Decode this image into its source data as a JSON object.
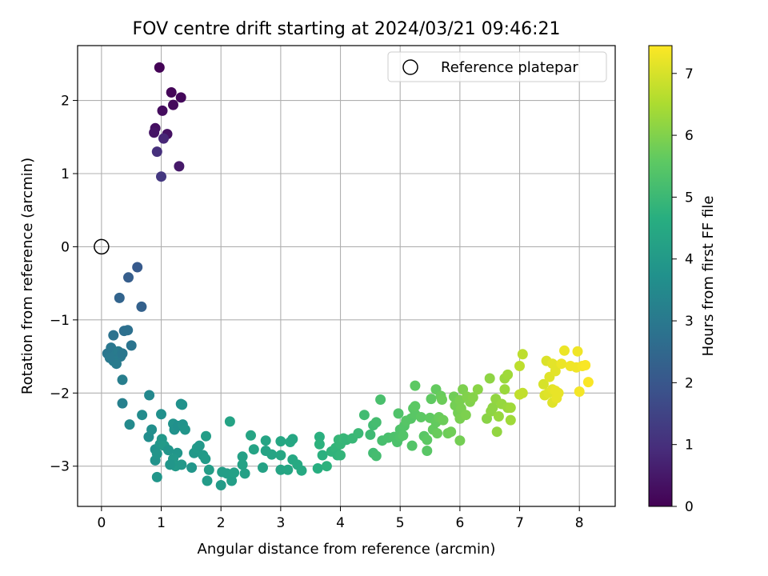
{
  "chart_data": {
    "type": "scatter",
    "title": "FOV centre drift starting at 2024/03/21 09:46:21",
    "xlabel": "Angular distance from reference (arcmin)",
    "ylabel": "Rotation from reference (arcmin)",
    "xlim": [
      -0.4,
      8.6
    ],
    "ylim": [
      -3.55,
      2.75
    ],
    "xticks": [
      0,
      1,
      2,
      3,
      4,
      5,
      6,
      7,
      8
    ],
    "yticks": [
      -3,
      -2,
      -1,
      0,
      1,
      2
    ],
    "grid": true,
    "legend": {
      "placement": "top-right",
      "entries": [
        "Reference platepar"
      ]
    },
    "reference_point": {
      "x": 0,
      "y": 0,
      "label": "Reference platepar"
    },
    "colorbar": {
      "label": "Hours from first FF file",
      "colormap": "viridis",
      "range": [
        0,
        7.45
      ],
      "ticks": [
        0,
        1,
        2,
        3,
        4,
        5,
        6,
        7
      ]
    },
    "series": [
      {
        "points": [
          [
            0.97,
            2.45,
            0.05
          ],
          [
            1.17,
            2.11,
            0.1
          ],
          [
            1.33,
            2.04,
            0.15
          ],
          [
            1.2,
            1.94,
            0.2
          ],
          [
            1.02,
            1.86,
            0.25
          ],
          [
            0.9,
            1.62,
            0.3
          ],
          [
            0.88,
            1.56,
            0.4
          ],
          [
            1.1,
            1.54,
            0.35
          ],
          [
            1.04,
            1.48,
            0.8
          ],
          [
            0.93,
            1.3,
            1.0
          ],
          [
            1.3,
            1.1,
            0.5
          ],
          [
            1.0,
            0.96,
            1.2
          ],
          [
            0.6,
            -0.28,
            2.1
          ],
          [
            0.45,
            -0.42,
            2.2
          ],
          [
            0.3,
            -0.7,
            2.4
          ],
          [
            0.67,
            -0.82,
            2.3
          ],
          [
            0.38,
            -1.15,
            2.7
          ],
          [
            0.44,
            -1.14,
            2.75
          ],
          [
            0.2,
            -1.21,
            2.8
          ],
          [
            0.5,
            -1.35,
            2.85
          ],
          [
            0.1,
            -1.46,
            2.9
          ],
          [
            0.16,
            -1.38,
            2.95
          ],
          [
            0.24,
            -1.47,
            3.0
          ],
          [
            0.28,
            -1.43,
            3.05
          ],
          [
            0.32,
            -1.5,
            3.0
          ],
          [
            0.35,
            -1.46,
            2.95
          ],
          [
            0.2,
            -1.56,
            3.1
          ],
          [
            0.25,
            -1.6,
            3.05
          ],
          [
            0.14,
            -1.52,
            3.0
          ],
          [
            0.35,
            -1.82,
            3.15
          ],
          [
            0.35,
            -2.14,
            3.2
          ],
          [
            0.8,
            -2.03,
            3.45
          ],
          [
            0.47,
            -2.43,
            3.5
          ],
          [
            0.68,
            -2.3,
            3.55
          ],
          [
            0.79,
            -2.6,
            3.6
          ],
          [
            0.84,
            -2.5,
            3.65
          ],
          [
            1.0,
            -2.29,
            3.7
          ],
          [
            0.9,
            -2.77,
            3.75
          ],
          [
            0.9,
            -2.92,
            3.8
          ],
          [
            0.93,
            -2.83,
            3.85
          ],
          [
            0.98,
            -2.7,
            3.9
          ],
          [
            1.01,
            -2.63,
            3.95
          ],
          [
            1.05,
            -2.72,
            4.0
          ],
          [
            0.93,
            -3.15,
            3.9
          ],
          [
            1.12,
            -2.78,
            3.85
          ],
          [
            1.2,
            -2.42,
            3.8
          ],
          [
            1.22,
            -2.5,
            3.75
          ],
          [
            1.28,
            -2.45,
            3.7
          ],
          [
            1.33,
            -2.15,
            3.7
          ],
          [
            1.35,
            -2.16,
            3.75
          ],
          [
            1.36,
            -2.43,
            3.8
          ],
          [
            1.4,
            -2.5,
            3.85
          ],
          [
            1.27,
            -2.82,
            3.9
          ],
          [
            1.2,
            -2.9,
            3.95
          ],
          [
            1.24,
            -3.0,
            4.0
          ],
          [
            1.15,
            -2.98,
            3.9
          ],
          [
            1.34,
            -2.98,
            3.95
          ],
          [
            1.51,
            -3.02,
            3.9
          ],
          [
            1.55,
            -2.82,
            3.95
          ],
          [
            1.6,
            -2.75,
            4.0
          ],
          [
            1.64,
            -2.72,
            3.95
          ],
          [
            1.7,
            -2.85,
            4.0
          ],
          [
            1.74,
            -2.9,
            4.05
          ],
          [
            1.75,
            -2.59,
            4.1
          ],
          [
            1.77,
            -3.2,
            4.05
          ],
          [
            1.8,
            -3.05,
            4.1
          ],
          [
            2.0,
            -3.26,
            4.05
          ],
          [
            2.02,
            -3.08,
            4.1
          ],
          [
            2.1,
            -3.1,
            4.15
          ],
          [
            2.18,
            -3.2,
            4.15
          ],
          [
            2.22,
            -3.09,
            4.2
          ],
          [
            2.15,
            -2.39,
            4.3
          ],
          [
            2.36,
            -2.87,
            4.2
          ],
          [
            2.36,
            -2.98,
            4.25
          ],
          [
            2.4,
            -3.1,
            4.2
          ],
          [
            2.5,
            -2.58,
            4.35
          ],
          [
            2.55,
            -2.77,
            4.3
          ],
          [
            2.7,
            -3.02,
            4.25
          ],
          [
            2.75,
            -2.79,
            4.3
          ],
          [
            2.75,
            -2.65,
            4.35
          ],
          [
            2.85,
            -2.84,
            4.35
          ],
          [
            3.0,
            -2.66,
            4.4
          ],
          [
            3.0,
            -2.85,
            4.4
          ],
          [
            3.0,
            -3.05,
            4.35
          ],
          [
            3.12,
            -3.05,
            4.4
          ],
          [
            3.16,
            -2.67,
            4.45
          ],
          [
            3.2,
            -2.91,
            4.45
          ],
          [
            3.2,
            -2.63,
            4.4
          ],
          [
            3.28,
            -2.98,
            4.5
          ],
          [
            3.35,
            -3.06,
            4.5
          ],
          [
            3.62,
            -3.03,
            4.65
          ],
          [
            3.65,
            -2.6,
            4.7
          ],
          [
            3.65,
            -2.7,
            4.75
          ],
          [
            3.7,
            -2.85,
            4.7
          ],
          [
            3.77,
            -3.0,
            4.75
          ],
          [
            3.85,
            -2.8,
            4.8
          ],
          [
            3.92,
            -2.75,
            4.85
          ],
          [
            3.95,
            -2.85,
            4.8
          ],
          [
            3.97,
            -2.64,
            4.9
          ],
          [
            4.0,
            -2.85,
            4.85
          ],
          [
            4.0,
            -2.7,
            4.9
          ],
          [
            4.05,
            -2.62,
            4.95
          ],
          [
            4.1,
            -2.64,
            4.9
          ],
          [
            4.2,
            -2.62,
            4.95
          ],
          [
            4.3,
            -2.55,
            5.0
          ],
          [
            4.4,
            -2.3,
            5.1
          ],
          [
            4.5,
            -2.57,
            5.05
          ],
          [
            4.55,
            -2.44,
            5.1
          ],
          [
            4.55,
            -2.82,
            5.1
          ],
          [
            4.6,
            -2.86,
            5.15
          ],
          [
            4.6,
            -2.4,
            5.15
          ],
          [
            4.67,
            -2.09,
            5.25
          ],
          [
            4.7,
            -2.65,
            5.2
          ],
          [
            4.8,
            -2.61,
            5.25
          ],
          [
            4.9,
            -2.6,
            5.3
          ],
          [
            4.95,
            -2.67,
            5.3
          ],
          [
            4.97,
            -2.28,
            5.35
          ],
          [
            5.0,
            -2.6,
            5.35
          ],
          [
            5.0,
            -2.5,
            5.35
          ],
          [
            5.05,
            -2.58,
            5.4
          ],
          [
            5.07,
            -2.45,
            5.4
          ],
          [
            5.1,
            -2.38,
            5.45
          ],
          [
            5.18,
            -2.35,
            5.45
          ],
          [
            5.2,
            -2.72,
            5.4
          ],
          [
            5.22,
            -2.21,
            5.5
          ],
          [
            5.25,
            -2.29,
            5.5
          ],
          [
            5.25,
            -2.18,
            5.55
          ],
          [
            5.25,
            -1.9,
            5.55
          ],
          [
            5.35,
            -2.33,
            5.55
          ],
          [
            5.4,
            -2.59,
            5.5
          ],
          [
            5.45,
            -2.79,
            5.5
          ],
          [
            5.45,
            -2.64,
            5.55
          ],
          [
            5.5,
            -2.34,
            5.6
          ],
          [
            5.52,
            -2.08,
            5.6
          ],
          [
            5.55,
            -2.5,
            5.65
          ],
          [
            5.6,
            -1.95,
            5.65
          ],
          [
            5.6,
            -2.4,
            5.65
          ],
          [
            5.62,
            -2.55,
            5.7
          ],
          [
            5.65,
            -2.33,
            5.7
          ],
          [
            5.68,
            -2.04,
            5.7
          ],
          [
            5.7,
            -2.09,
            5.75
          ],
          [
            5.72,
            -2.37,
            5.75
          ],
          [
            5.8,
            -2.55,
            5.75
          ],
          [
            5.85,
            -2.53,
            5.8
          ],
          [
            5.9,
            -2.05,
            5.8
          ],
          [
            5.92,
            -2.17,
            5.85
          ],
          [
            5.97,
            -2.27,
            5.85
          ],
          [
            6.0,
            -2.65,
            5.85
          ],
          [
            6.0,
            -2.35,
            5.9
          ],
          [
            6.0,
            -2.1,
            5.9
          ],
          [
            6.02,
            -2.21,
            5.9
          ],
          [
            6.05,
            -1.95,
            5.95
          ],
          [
            6.1,
            -2.3,
            5.95
          ],
          [
            6.12,
            -2.05,
            6.0
          ],
          [
            6.17,
            -2.12,
            6.0
          ],
          [
            6.22,
            -2.06,
            6.05
          ],
          [
            6.3,
            -1.95,
            6.1
          ],
          [
            6.45,
            -2.35,
            6.1
          ],
          [
            6.5,
            -1.8,
            6.15
          ],
          [
            6.52,
            -2.25,
            6.15
          ],
          [
            6.55,
            -2.2,
            6.15
          ],
          [
            6.6,
            -2.08,
            6.2
          ],
          [
            6.62,
            -2.53,
            6.2
          ],
          [
            6.65,
            -2.32,
            6.25
          ],
          [
            6.7,
            -2.15,
            6.25
          ],
          [
            6.75,
            -1.8,
            6.3
          ],
          [
            6.75,
            -1.95,
            6.3
          ],
          [
            6.8,
            -2.2,
            6.3
          ],
          [
            6.85,
            -2.37,
            6.35
          ],
          [
            6.85,
            -2.2,
            6.35
          ],
          [
            6.8,
            -1.75,
            6.35
          ],
          [
            7.0,
            -1.63,
            6.7
          ],
          [
            7.05,
            -1.47,
            6.7
          ],
          [
            7.0,
            -2.02,
            6.75
          ],
          [
            7.05,
            -2.0,
            6.75
          ],
          [
            7.4,
            -1.88,
            7.0
          ],
          [
            7.42,
            -2.03,
            7.05
          ],
          [
            7.45,
            -1.56,
            7.05
          ],
          [
            7.48,
            -2.0,
            7.1
          ],
          [
            7.5,
            -1.78,
            7.1
          ],
          [
            7.55,
            -2.13,
            7.1
          ],
          [
            7.55,
            -1.95,
            7.15
          ],
          [
            7.55,
            -1.6,
            7.15
          ],
          [
            7.6,
            -1.7,
            7.15
          ],
          [
            7.6,
            -1.97,
            7.2
          ],
          [
            7.62,
            -2.07,
            7.2
          ],
          [
            7.65,
            -2.0,
            7.2
          ],
          [
            7.7,
            -1.6,
            7.25
          ],
          [
            7.75,
            -1.42,
            7.25
          ],
          [
            7.85,
            -1.63,
            7.3
          ],
          [
            7.95,
            -1.65,
            7.3
          ],
          [
            7.97,
            -1.43,
            7.3
          ],
          [
            8.0,
            -1.98,
            7.35
          ],
          [
            8.05,
            -1.63,
            7.35
          ],
          [
            8.1,
            -1.62,
            7.4
          ],
          [
            8.15,
            -1.85,
            7.4
          ]
        ]
      }
    ]
  }
}
